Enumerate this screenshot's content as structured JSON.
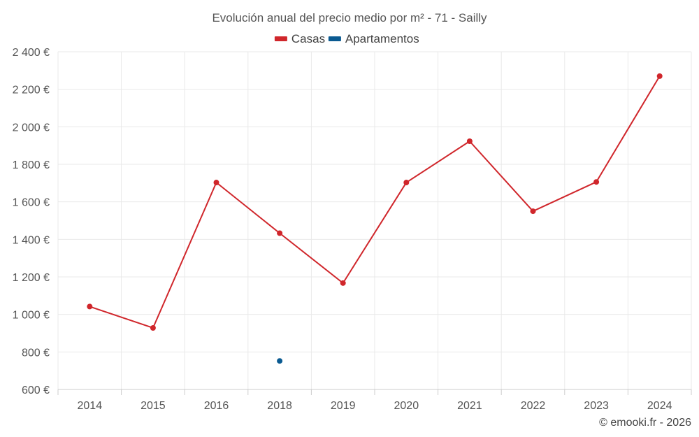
{
  "chart_data": {
    "type": "line",
    "title": "Evolución anual del precio medio por m² - 71 - Sailly",
    "categories": [
      "2014",
      "2015",
      "2016",
      "2018",
      "2019",
      "2020",
      "2021",
      "2022",
      "2023",
      "2024"
    ],
    "y_ticks": [
      "600 €",
      "800 €",
      "1 000 €",
      "1 200 €",
      "1 400 €",
      "1 600 €",
      "1 800 €",
      "2 000 €",
      "2 200 €",
      "2 400 €"
    ],
    "ylim": [
      600,
      2400
    ],
    "grid": true,
    "legend_position": "top-center",
    "series": [
      {
        "name": "Casas",
        "color": "#d0262b",
        "values": [
          1042,
          928,
          1703,
          1433,
          1167,
          1703,
          1923,
          1550,
          1706,
          2270
        ]
      },
      {
        "name": "Apartamentos",
        "color": "#0a5a91",
        "values": [
          null,
          null,
          null,
          752,
          null,
          null,
          null,
          null,
          null,
          null
        ]
      }
    ]
  },
  "credit": "© emooki.fr - 2026"
}
